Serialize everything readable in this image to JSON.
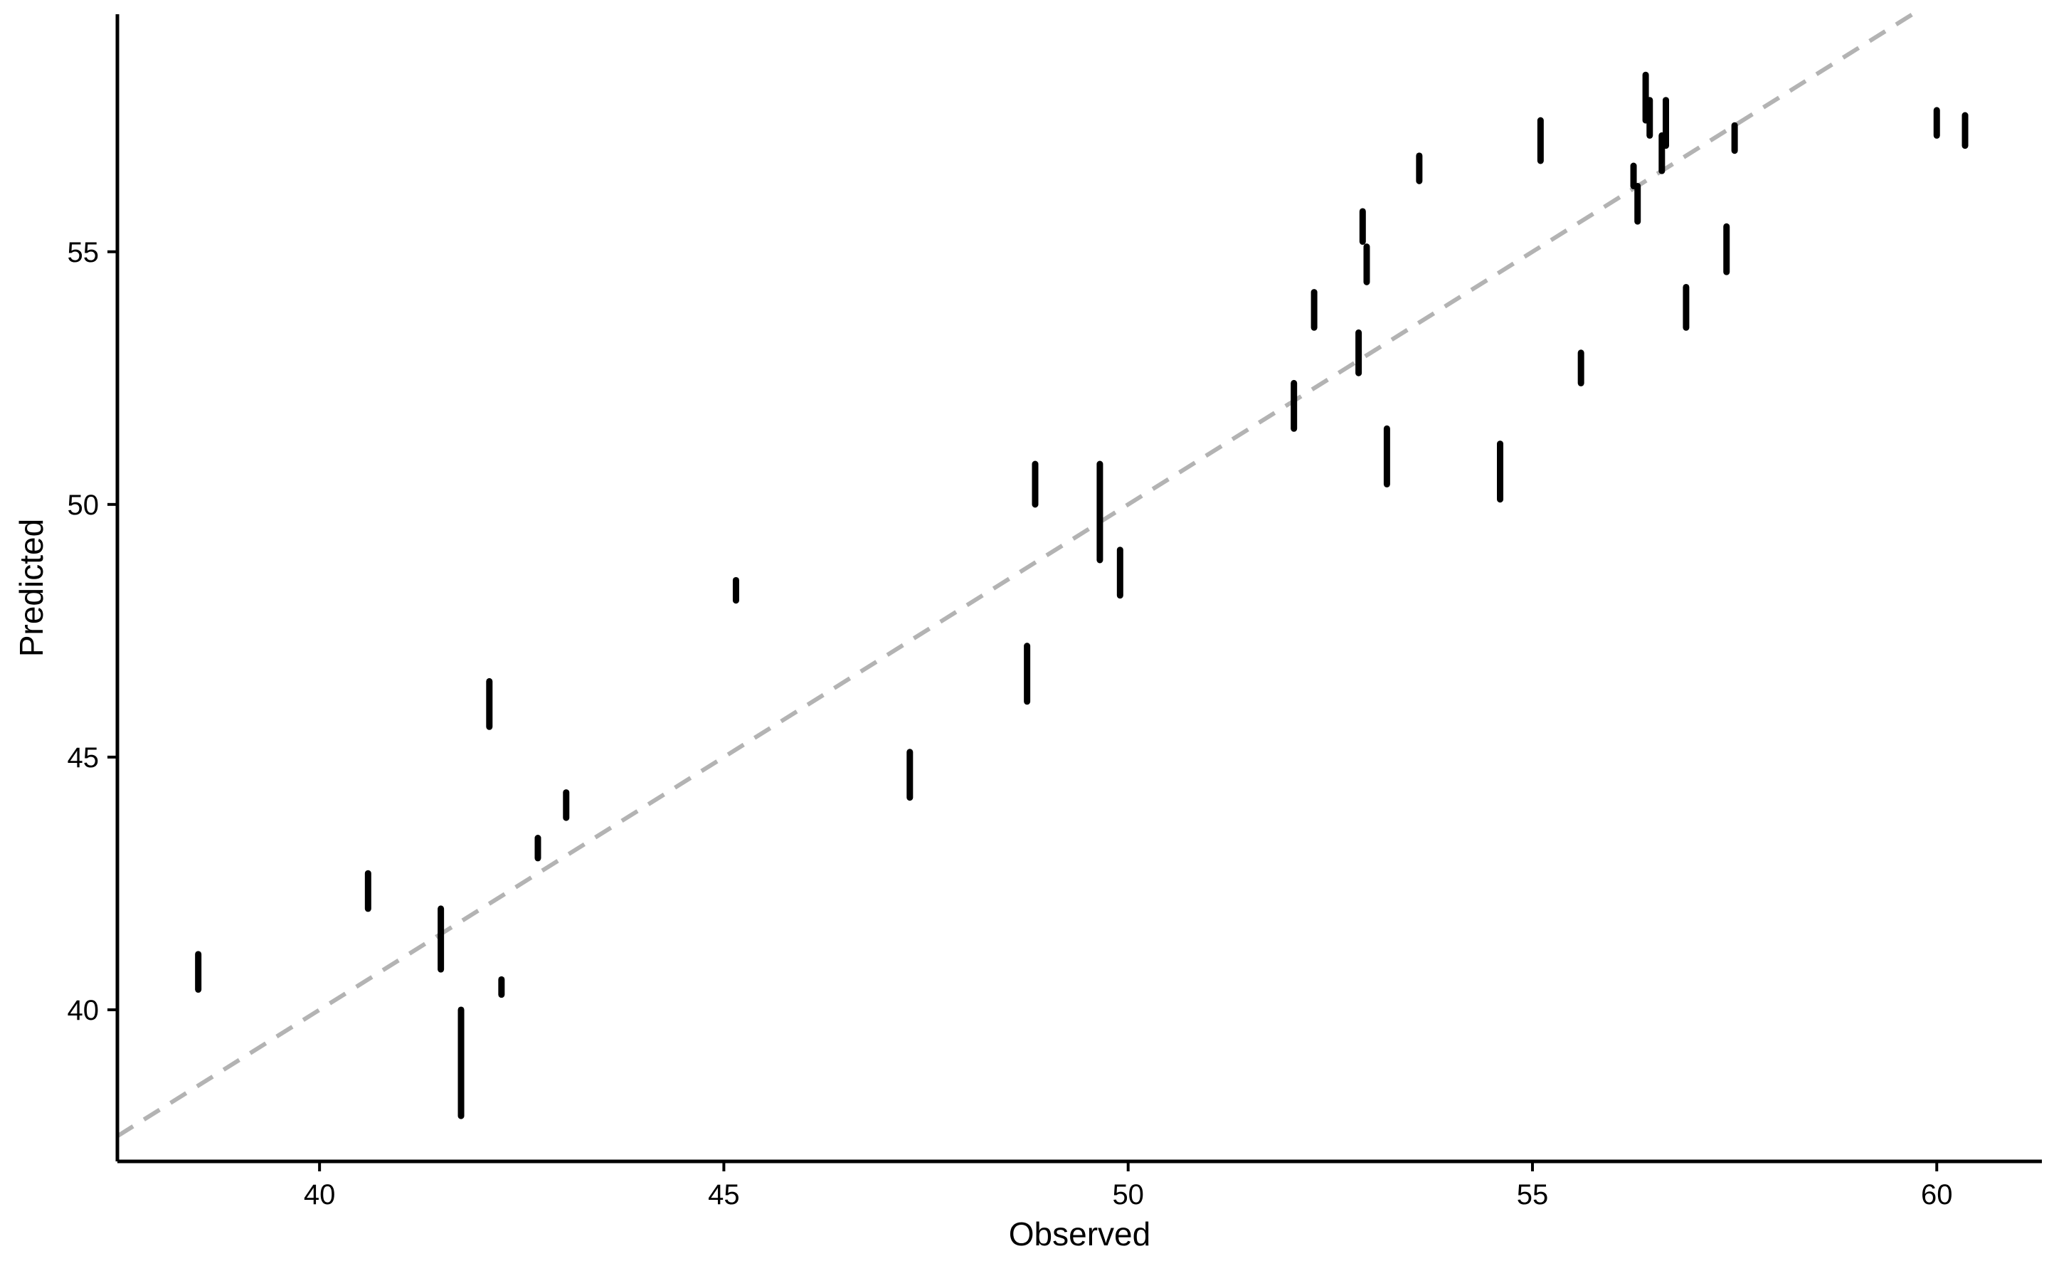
{
  "chart_data": {
    "type": "scatter",
    "title": "",
    "xlabel": "Observed",
    "ylabel": "Predicted",
    "xlim": [
      37.5,
      61.3
    ],
    "ylim": [
      37.0,
      59.7
    ],
    "xticks": [
      40,
      45,
      50,
      55,
      60
    ],
    "yticks": [
      40,
      45,
      50,
      55
    ],
    "grid": false,
    "reference_line": {
      "style": "dashed",
      "color": "#b3b3b3",
      "slope": 1,
      "intercept": 0
    },
    "mark_color": "#000000",
    "points": [
      {
        "x": 38.5,
        "y_low": 40.4,
        "y_high": 41.1
      },
      {
        "x": 40.6,
        "y_low": 42.0,
        "y_high": 42.7
      },
      {
        "x": 41.5,
        "y_low": 40.8,
        "y_high": 42.0
      },
      {
        "x": 41.75,
        "y_low": 37.9,
        "y_high": 40.0
      },
      {
        "x": 42.1,
        "y_low": 45.6,
        "y_high": 46.5
      },
      {
        "x": 42.25,
        "y_low": 40.3,
        "y_high": 40.6
      },
      {
        "x": 42.7,
        "y_low": 43.0,
        "y_high": 43.4
      },
      {
        "x": 43.05,
        "y_low": 43.8,
        "y_high": 44.3
      },
      {
        "x": 45.15,
        "y_low": 48.1,
        "y_high": 48.5
      },
      {
        "x": 47.3,
        "y_low": 44.2,
        "y_high": 45.1
      },
      {
        "x": 48.75,
        "y_low": 46.1,
        "y_high": 47.2
      },
      {
        "x": 48.85,
        "y_low": 50.0,
        "y_high": 50.8
      },
      {
        "x": 49.65,
        "y_low": 48.9,
        "y_high": 50.8
      },
      {
        "x": 49.9,
        "y_low": 48.2,
        "y_high": 49.1
      },
      {
        "x": 52.05,
        "y_low": 51.5,
        "y_high": 52.4
      },
      {
        "x": 52.3,
        "y_low": 53.5,
        "y_high": 54.2
      },
      {
        "x": 52.85,
        "y_low": 52.6,
        "y_high": 53.4
      },
      {
        "x": 52.9,
        "y_low": 55.2,
        "y_high": 55.8
      },
      {
        "x": 52.95,
        "y_low": 54.4,
        "y_high": 55.1
      },
      {
        "x": 53.2,
        "y_low": 50.4,
        "y_high": 51.5
      },
      {
        "x": 53.6,
        "y_low": 56.4,
        "y_high": 56.9
      },
      {
        "x": 54.6,
        "y_low": 50.1,
        "y_high": 51.2
      },
      {
        "x": 55.1,
        "y_low": 56.8,
        "y_high": 57.6
      },
      {
        "x": 55.6,
        "y_low": 52.4,
        "y_high": 53.0
      },
      {
        "x": 56.25,
        "y_low": 56.3,
        "y_high": 56.7
      },
      {
        "x": 56.3,
        "y_low": 55.6,
        "y_high": 56.3
      },
      {
        "x": 56.4,
        "y_low": 57.6,
        "y_high": 58.5
      },
      {
        "x": 56.45,
        "y_low": 57.3,
        "y_high": 58.0
      },
      {
        "x": 56.6,
        "y_low": 56.6,
        "y_high": 57.3
      },
      {
        "x": 56.65,
        "y_low": 57.1,
        "y_high": 58.0
      },
      {
        "x": 56.9,
        "y_low": 53.5,
        "y_high": 54.3
      },
      {
        "x": 57.4,
        "y_low": 54.6,
        "y_high": 55.5
      },
      {
        "x": 57.5,
        "y_low": 57.0,
        "y_high": 57.5
      },
      {
        "x": 60.0,
        "y_low": 57.3,
        "y_high": 57.8
      },
      {
        "x": 60.35,
        "y_low": 57.1,
        "y_high": 57.7
      }
    ]
  }
}
